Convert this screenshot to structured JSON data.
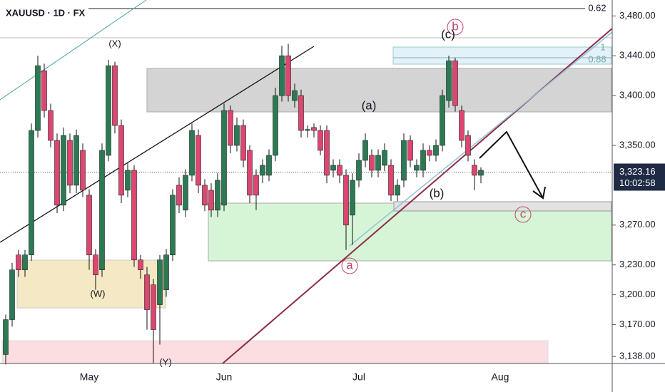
{
  "chart_data": {
    "type": "candlestick",
    "title": "XAUUSD · 1D · FX",
    "categories": [
      null,
      null,
      null,
      null,
      null,
      null,
      null,
      null,
      null,
      null,
      null,
      null,
      null,
      "May",
      null,
      null,
      null,
      null,
      null,
      null,
      null,
      null,
      null,
      null,
      null,
      null,
      null,
      null,
      null,
      null,
      null,
      null,
      null,
      null,
      "Jun",
      null,
      null,
      null,
      null,
      null,
      null,
      null,
      null,
      null,
      null,
      null,
      null,
      null,
      null,
      null,
      null,
      null,
      null,
      null,
      null,
      "Jul",
      null,
      null,
      null,
      null,
      null,
      null,
      null,
      null,
      null,
      null,
      null,
      null,
      null,
      null,
      null,
      null,
      null,
      null,
      null,
      null,
      null,
      "Aug"
    ],
    "open": [
      3140,
      3175,
      3240,
      3225,
      3240,
      3365,
      3425,
      3385,
      3355,
      3290,
      3355,
      3310,
      3345,
      3300,
      3240,
      3225,
      3340,
      3430,
      3370,
      3305,
      3325,
      3235,
      3220,
      3210,
      3190,
      3205,
      3240,
      3310,
      3285,
      3320,
      3360,
      3310,
      3305,
      3285,
      3290,
      3385,
      3350,
      3370,
      3345,
      3320,
      3320,
      3320,
      3340,
      3400,
      3440,
      3395,
      3400,
      3365,
      3368,
      3365,
      3365,
      3325,
      3330,
      3320,
      3280,
      3315,
      3335,
      3340,
      3325,
      3330,
      3330,
      3300,
      3315,
      3355,
      3325,
      3325,
      3345,
      3340,
      3350,
      3395,
      3435,
      3385,
      3360,
      3330,
      3320,
      null,
      null,
      null
    ],
    "high": [
      3180,
      3232,
      3245,
      3245,
      3372,
      3440,
      3432,
      3392,
      3362,
      3368,
      3362,
      3366,
      3352,
      3306,
      3246,
      3352,
      3436,
      3434,
      3376,
      3332,
      3330,
      3240,
      3228,
      3216,
      3240,
      3246,
      3306,
      3318,
      3326,
      3372,
      3366,
      3316,
      3312,
      3322,
      3392,
      3390,
      3378,
      3376,
      3350,
      3326,
      3336,
      3346,
      3408,
      3450,
      3452,
      3412,
      3406,
      3370,
      3372,
      3370,
      3370,
      3336,
      3336,
      3326,
      3322,
      3342,
      3362,
      3346,
      3346,
      3352,
      3336,
      3316,
      3362,
      3360,
      3336,
      3352,
      3350,
      3356,
      3406,
      3440,
      3438,
      3390,
      3365,
      3336,
      3328,
      null,
      null,
      null
    ],
    "low": [
      3130,
      3168,
      3218,
      3218,
      3234,
      3358,
      3378,
      3348,
      3282,
      3284,
      3302,
      3302,
      3298,
      3225,
      3205,
      3218,
      3334,
      3362,
      3292,
      3298,
      3228,
      3216,
      3165,
      3131,
      3150,
      3198,
      3234,
      3282,
      3278,
      3314,
      3302,
      3284,
      3278,
      3278,
      3284,
      3342,
      3344,
      3328,
      3292,
      3285,
      3312,
      3314,
      3334,
      3394,
      3394,
      3388,
      3358,
      3358,
      3358,
      3340,
      3312,
      3318,
      3312,
      3245,
      3250,
      3308,
      3328,
      3318,
      3318,
      3324,
      3294,
      3294,
      3308,
      3328,
      3318,
      3318,
      3334,
      3334,
      3344,
      3388,
      3384,
      3348,
      3334,
      3305,
      3312,
      null,
      null,
      null
    ],
    "close": [
      3175,
      3225,
      3225,
      3240,
      3365,
      3430,
      3385,
      3355,
      3290,
      3360,
      3310,
      3360,
      3305,
      3240,
      3220,
      3345,
      3430,
      3370,
      3300,
      3325,
      3235,
      3225,
      3185,
      3165,
      3235,
      3240,
      3300,
      3290,
      3320,
      3365,
      3310,
      3290,
      3285,
      3315,
      3385,
      3350,
      3370,
      3335,
      3300,
      3300,
      3330,
      3340,
      3400,
      3440,
      3400,
      3405,
      3365,
      3366,
      3365,
      3345,
      3320,
      3330,
      3320,
      3270,
      3315,
      3335,
      3355,
      3325,
      3340,
      3345,
      3300,
      3310,
      3355,
      3335,
      3330,
      3345,
      3340,
      3350,
      3400,
      3435,
      3390,
      3355,
      3340,
      3320,
      3325,
      null,
      null,
      null
    ],
    "up_color": "#2b7a53",
    "down_color": "#dc4670",
    "ylim": [
      3131,
      3496
    ],
    "yticks": [
      {
        "value": 3138,
        "label": "3,138.00"
      },
      {
        "value": 3170,
        "label": "3,170.00"
      },
      {
        "value": 3200,
        "label": "3,200.00"
      },
      {
        "value": 3230,
        "label": "3,230.00"
      },
      {
        "value": 3270,
        "label": "3,270.00"
      },
      {
        "value": 3350,
        "label": "3,350.00"
      },
      {
        "value": 3400,
        "label": "3,400.00"
      },
      {
        "value": 3440,
        "label": "3,440.00"
      },
      {
        "value": 3480,
        "label": "3,480.00"
      }
    ],
    "last_price": {
      "value": 3323.16,
      "label": "3,323.16"
    },
    "countdown": "10:02:58",
    "annotations": [
      "(X)",
      "(W)",
      "(Y)",
      "(a)",
      "(c)",
      "b",
      "(b)",
      "c",
      "a",
      "0.62",
      "1",
      "0.88"
    ]
  }
}
